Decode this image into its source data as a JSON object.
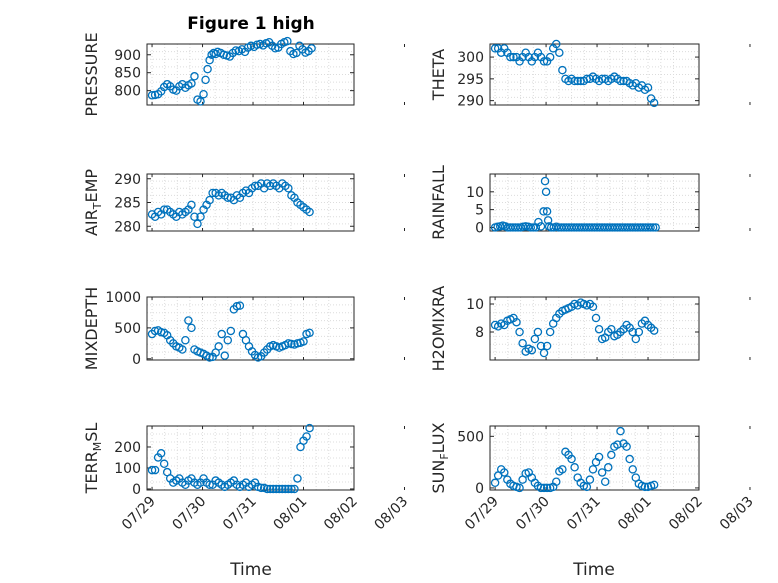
{
  "figure": {
    "title": "Figure 1 high"
  },
  "style": {
    "marker_color": "#0072BD",
    "axis_color": "#262626",
    "grid_color": "#dcdcdc"
  },
  "chart_data": [
    {
      "type": "scatter",
      "ylabel": "PRESSURE",
      "ylabel_parts": [
        "PRESSURE"
      ],
      "ylim": [
        760,
        930
      ],
      "yticks": [
        800,
        850,
        900
      ],
      "x": [
        0.0,
        0.06,
        0.12,
        0.18,
        0.24,
        0.3,
        0.36,
        0.42,
        0.48,
        0.54,
        0.6,
        0.66,
        0.72,
        0.78,
        0.84,
        0.9,
        0.96,
        1.02,
        1.06,
        1.1,
        1.14,
        1.18,
        1.22,
        1.26,
        1.3,
        1.36,
        1.42,
        1.48,
        1.54,
        1.6,
        1.66,
        1.72,
        1.78,
        1.84,
        1.9,
        1.96,
        2.02,
        2.08,
        2.14,
        2.2,
        2.26,
        2.32,
        2.38,
        2.44,
        2.5,
        2.56,
        2.62,
        2.68,
        2.74,
        2.8,
        2.86,
        2.92,
        2.98,
        3.04,
        3.1,
        3.16
      ],
      "y": [
        787,
        788,
        790,
        798,
        810,
        818,
        812,
        803,
        800,
        812,
        818,
        808,
        815,
        820,
        840,
        775,
        770,
        790,
        830,
        860,
        885,
        900,
        905,
        902,
        908,
        905,
        900,
        898,
        895,
        905,
        912,
        910,
        915,
        908,
        920,
        925,
        922,
        928,
        930,
        926,
        932,
        935,
        925,
        918,
        920,
        930,
        935,
        938,
        910,
        902,
        905,
        925,
        915,
        906,
        910,
        918
      ]
    },
    {
      "type": "scatter",
      "ylabel": "THETA",
      "ylabel_parts": [
        "THETA"
      ],
      "ylim": [
        289,
        303
      ],
      "yticks": [
        290,
        295,
        300
      ],
      "x": [
        0.0,
        0.06,
        0.12,
        0.18,
        0.24,
        0.3,
        0.36,
        0.42,
        0.48,
        0.54,
        0.6,
        0.66,
        0.72,
        0.78,
        0.84,
        0.9,
        0.96,
        1.02,
        1.08,
        1.14,
        1.2,
        1.26,
        1.32,
        1.38,
        1.44,
        1.5,
        1.56,
        1.62,
        1.68,
        1.74,
        1.8,
        1.86,
        1.92,
        1.98,
        2.04,
        2.1,
        2.16,
        2.22,
        2.28,
        2.34,
        2.4,
        2.46,
        2.52,
        2.58,
        2.64,
        2.7,
        2.76,
        2.82,
        2.88,
        2.94,
        3.0,
        3.06,
        3.12
      ],
      "y": [
        302,
        302,
        301,
        302,
        301,
        300,
        300,
        300,
        299,
        300,
        301,
        300,
        299,
        300,
        301,
        300,
        299,
        299,
        300,
        302,
        303,
        301,
        297,
        295,
        294.5,
        295,
        294.5,
        294.5,
        294.5,
        294.5,
        295,
        295,
        295.5,
        295,
        294.5,
        295,
        295,
        294.5,
        295,
        295.5,
        295,
        294.5,
        294.5,
        294.5,
        294,
        293.5,
        294,
        293,
        293.5,
        292.5,
        293,
        290.5,
        289.5
      ]
    },
    {
      "type": "scatter",
      "ylabel": "AIR_TEMP",
      "ylabel_parts": [
        "AIR",
        "T",
        "EMP"
      ],
      "ylim": [
        279,
        291
      ],
      "yticks": [
        280,
        285,
        290
      ],
      "x": [
        0.0,
        0.06,
        0.12,
        0.18,
        0.24,
        0.3,
        0.36,
        0.42,
        0.48,
        0.54,
        0.6,
        0.66,
        0.72,
        0.78,
        0.84,
        0.9,
        0.96,
        1.02,
        1.08,
        1.14,
        1.2,
        1.26,
        1.32,
        1.38,
        1.44,
        1.5,
        1.56,
        1.62,
        1.68,
        1.74,
        1.8,
        1.86,
        1.92,
        1.98,
        2.04,
        2.1,
        2.16,
        2.22,
        2.28,
        2.34,
        2.4,
        2.46,
        2.52,
        2.58,
        2.64,
        2.7,
        2.76,
        2.82,
        2.88,
        2.94,
        3.0,
        3.06,
        3.12
      ],
      "y": [
        282.5,
        282,
        283,
        282.5,
        283.5,
        283.5,
        283,
        282.5,
        282,
        283,
        282.5,
        283,
        283.5,
        284.5,
        282,
        280.5,
        282,
        283.5,
        284.5,
        285.5,
        287,
        287,
        286.5,
        287,
        286.5,
        286,
        286,
        285.5,
        286.5,
        286,
        287,
        287.5,
        287,
        288,
        288.5,
        288.5,
        289,
        288,
        289,
        288.5,
        289,
        288.5,
        288,
        289,
        288.5,
        288,
        286.5,
        286,
        285,
        284.5,
        284,
        283.5,
        283
      ]
    },
    {
      "type": "scatter",
      "ylabel": "RAINFALL",
      "ylabel_parts": [
        "RAINFALL"
      ],
      "ylim": [
        -1,
        15
      ],
      "yticks": [
        0,
        5,
        10
      ],
      "x": [
        0.0,
        0.05,
        0.1,
        0.15,
        0.2,
        0.25,
        0.3,
        0.35,
        0.4,
        0.45,
        0.5,
        0.55,
        0.6,
        0.65,
        0.7,
        0.75,
        0.8,
        0.85,
        0.9,
        0.95,
        0.98,
        1.0,
        1.02,
        1.04,
        1.06,
        1.1,
        1.15,
        1.2,
        1.25,
        1.3,
        1.35,
        1.4,
        1.45,
        1.5,
        1.55,
        1.6,
        1.65,
        1.7,
        1.75,
        1.8,
        1.85,
        1.9,
        1.95,
        2.0,
        2.05,
        2.1,
        2.15,
        2.2,
        2.25,
        2.3,
        2.35,
        2.4,
        2.45,
        2.5,
        2.55,
        2.6,
        2.65,
        2.7,
        2.75,
        2.8,
        2.85,
        2.9,
        2.95,
        3.0,
        3.05,
        3.1,
        3.15
      ],
      "y": [
        0,
        0.2,
        0.3,
        0.5,
        0.3,
        0,
        0,
        0,
        0,
        0,
        0,
        0.2,
        0.3,
        0.2,
        0,
        0,
        0,
        1.5,
        0.3,
        4.5,
        13,
        10,
        4.5,
        2,
        0.3,
        0,
        0,
        0.2,
        0,
        0,
        0,
        0,
        0,
        0,
        0,
        0,
        0,
        0,
        0,
        0,
        0,
        0,
        0,
        0,
        0,
        0,
        0,
        0,
        0,
        0,
        0,
        0,
        0,
        0,
        0,
        0,
        0,
        0,
        0,
        0,
        0,
        0,
        0,
        0,
        0,
        0,
        0
      ]
    },
    {
      "type": "scatter",
      "ylabel": "MIXDEPTH",
      "ylabel_parts": [
        "MIXDEPTH"
      ],
      "ylim": [
        -20,
        1000
      ],
      "yticks": [
        0,
        500,
        1000
      ],
      "x": [
        0.0,
        0.06,
        0.12,
        0.18,
        0.24,
        0.3,
        0.36,
        0.42,
        0.48,
        0.54,
        0.6,
        0.66,
        0.72,
        0.78,
        0.84,
        0.9,
        0.96,
        1.02,
        1.08,
        1.14,
        1.2,
        1.26,
        1.32,
        1.38,
        1.44,
        1.5,
        1.56,
        1.62,
        1.68,
        1.74,
        1.8,
        1.86,
        1.92,
        1.98,
        2.04,
        2.1,
        2.16,
        2.22,
        2.28,
        2.34,
        2.4,
        2.46,
        2.52,
        2.58,
        2.64,
        2.7,
        2.76,
        2.82,
        2.88,
        2.94,
        3.0,
        3.06,
        3.12
      ],
      "y": [
        400,
        450,
        460,
        430,
        420,
        380,
        300,
        250,
        200,
        180,
        150,
        300,
        620,
        500,
        150,
        120,
        100,
        80,
        50,
        20,
        30,
        100,
        200,
        400,
        50,
        300,
        450,
        800,
        850,
        860,
        400,
        300,
        200,
        120,
        60,
        20,
        40,
        100,
        150,
        200,
        220,
        200,
        180,
        200,
        220,
        250,
        240,
        230,
        250,
        260,
        280,
        400,
        420
      ]
    },
    {
      "type": "scatter",
      "ylabel": "H2OMIXRA",
      "ylabel_parts": [
        "H2OMIXRA"
      ],
      "ylim": [
        6,
        10.5
      ],
      "yticks": [
        8,
        10
      ],
      "x": [
        0.0,
        0.06,
        0.12,
        0.18,
        0.24,
        0.3,
        0.36,
        0.42,
        0.48,
        0.54,
        0.6,
        0.66,
        0.72,
        0.78,
        0.84,
        0.9,
        0.96,
        1.02,
        1.08,
        1.14,
        1.2,
        1.26,
        1.32,
        1.38,
        1.44,
        1.5,
        1.56,
        1.62,
        1.68,
        1.74,
        1.8,
        1.86,
        1.92,
        1.98,
        2.04,
        2.1,
        2.16,
        2.22,
        2.28,
        2.34,
        2.4,
        2.46,
        2.52,
        2.58,
        2.64,
        2.7,
        2.76,
        2.82,
        2.88,
        2.94,
        3.0,
        3.06,
        3.12
      ],
      "y": [
        8.5,
        8.4,
        8.6,
        8.5,
        8.8,
        8.9,
        9.0,
        8.7,
        8.0,
        7.2,
        6.6,
        6.8,
        6.7,
        7.5,
        8.0,
        7.0,
        6.5,
        7.0,
        8.0,
        8.6,
        9.0,
        9.3,
        9.5,
        9.6,
        9.7,
        9.8,
        10.0,
        9.9,
        10.1,
        10.0,
        9.9,
        10.0,
        9.8,
        9.0,
        8.2,
        7.5,
        7.6,
        8.0,
        8.2,
        7.7,
        7.8,
        8.0,
        8.2,
        8.5,
        8.3,
        8.0,
        7.5,
        8.0,
        8.6,
        8.8,
        8.5,
        8.3,
        8.1
      ]
    },
    {
      "type": "scatter",
      "ylabel": "TERR_MSL",
      "ylabel_parts": [
        "TERR",
        "M",
        "SL"
      ],
      "ylim": [
        -5,
        300
      ],
      "yticks": [
        0,
        100,
        200
      ],
      "x": [
        0.0,
        0.06,
        0.12,
        0.18,
        0.24,
        0.3,
        0.36,
        0.42,
        0.48,
        0.54,
        0.6,
        0.66,
        0.72,
        0.78,
        0.84,
        0.9,
        0.96,
        1.02,
        1.08,
        1.14,
        1.2,
        1.26,
        1.32,
        1.38,
        1.44,
        1.5,
        1.56,
        1.62,
        1.68,
        1.74,
        1.8,
        1.86,
        1.92,
        1.98,
        2.04,
        2.1,
        2.16,
        2.22,
        2.28,
        2.34,
        2.4,
        2.46,
        2.52,
        2.58,
        2.64,
        2.7,
        2.76,
        2.82,
        2.88,
        2.94,
        3.0,
        3.06,
        3.12
      ],
      "y": [
        90,
        90,
        150,
        170,
        120,
        80,
        50,
        30,
        40,
        50,
        30,
        20,
        40,
        50,
        30,
        20,
        30,
        50,
        30,
        20,
        20,
        40,
        30,
        20,
        10,
        20,
        30,
        40,
        20,
        10,
        20,
        30,
        10,
        20,
        30,
        10,
        5,
        5,
        0,
        0,
        0,
        0,
        0,
        0,
        0,
        0,
        0,
        0,
        50,
        200,
        230,
        250,
        290
      ]
    },
    {
      "type": "scatter",
      "ylabel": "SUN_FLUX",
      "ylabel_parts": [
        "SUN",
        "F",
        "LUX"
      ],
      "ylim": [
        -20,
        600
      ],
      "yticks": [
        0,
        500
      ],
      "x": [
        0.0,
        0.06,
        0.12,
        0.18,
        0.24,
        0.3,
        0.36,
        0.42,
        0.48,
        0.54,
        0.6,
        0.66,
        0.72,
        0.78,
        0.84,
        0.9,
        0.96,
        1.02,
        1.08,
        1.14,
        1.2,
        1.26,
        1.32,
        1.38,
        1.44,
        1.5,
        1.56,
        1.62,
        1.68,
        1.74,
        1.8,
        1.86,
        1.92,
        1.98,
        2.04,
        2.1,
        2.16,
        2.22,
        2.28,
        2.34,
        2.4,
        2.46,
        2.52,
        2.58,
        2.64,
        2.7,
        2.76,
        2.82,
        2.88,
        2.94,
        3.0,
        3.06,
        3.12
      ],
      "y": [
        50,
        120,
        180,
        150,
        80,
        40,
        20,
        10,
        0,
        80,
        140,
        150,
        100,
        50,
        20,
        0,
        0,
        0,
        0,
        10,
        60,
        160,
        180,
        350,
        320,
        280,
        200,
        100,
        50,
        20,
        10,
        80,
        180,
        250,
        300,
        150,
        60,
        200,
        320,
        400,
        420,
        550,
        430,
        400,
        280,
        180,
        100,
        40,
        20,
        10,
        10,
        20,
        30
      ]
    }
  ],
  "x_axis": {
    "label": "Time",
    "ticks": [
      "07/29",
      "07/30",
      "07/31",
      "08/01",
      "08/02",
      "08/03"
    ],
    "xlim": [
      -0.1,
      4.0
    ]
  }
}
